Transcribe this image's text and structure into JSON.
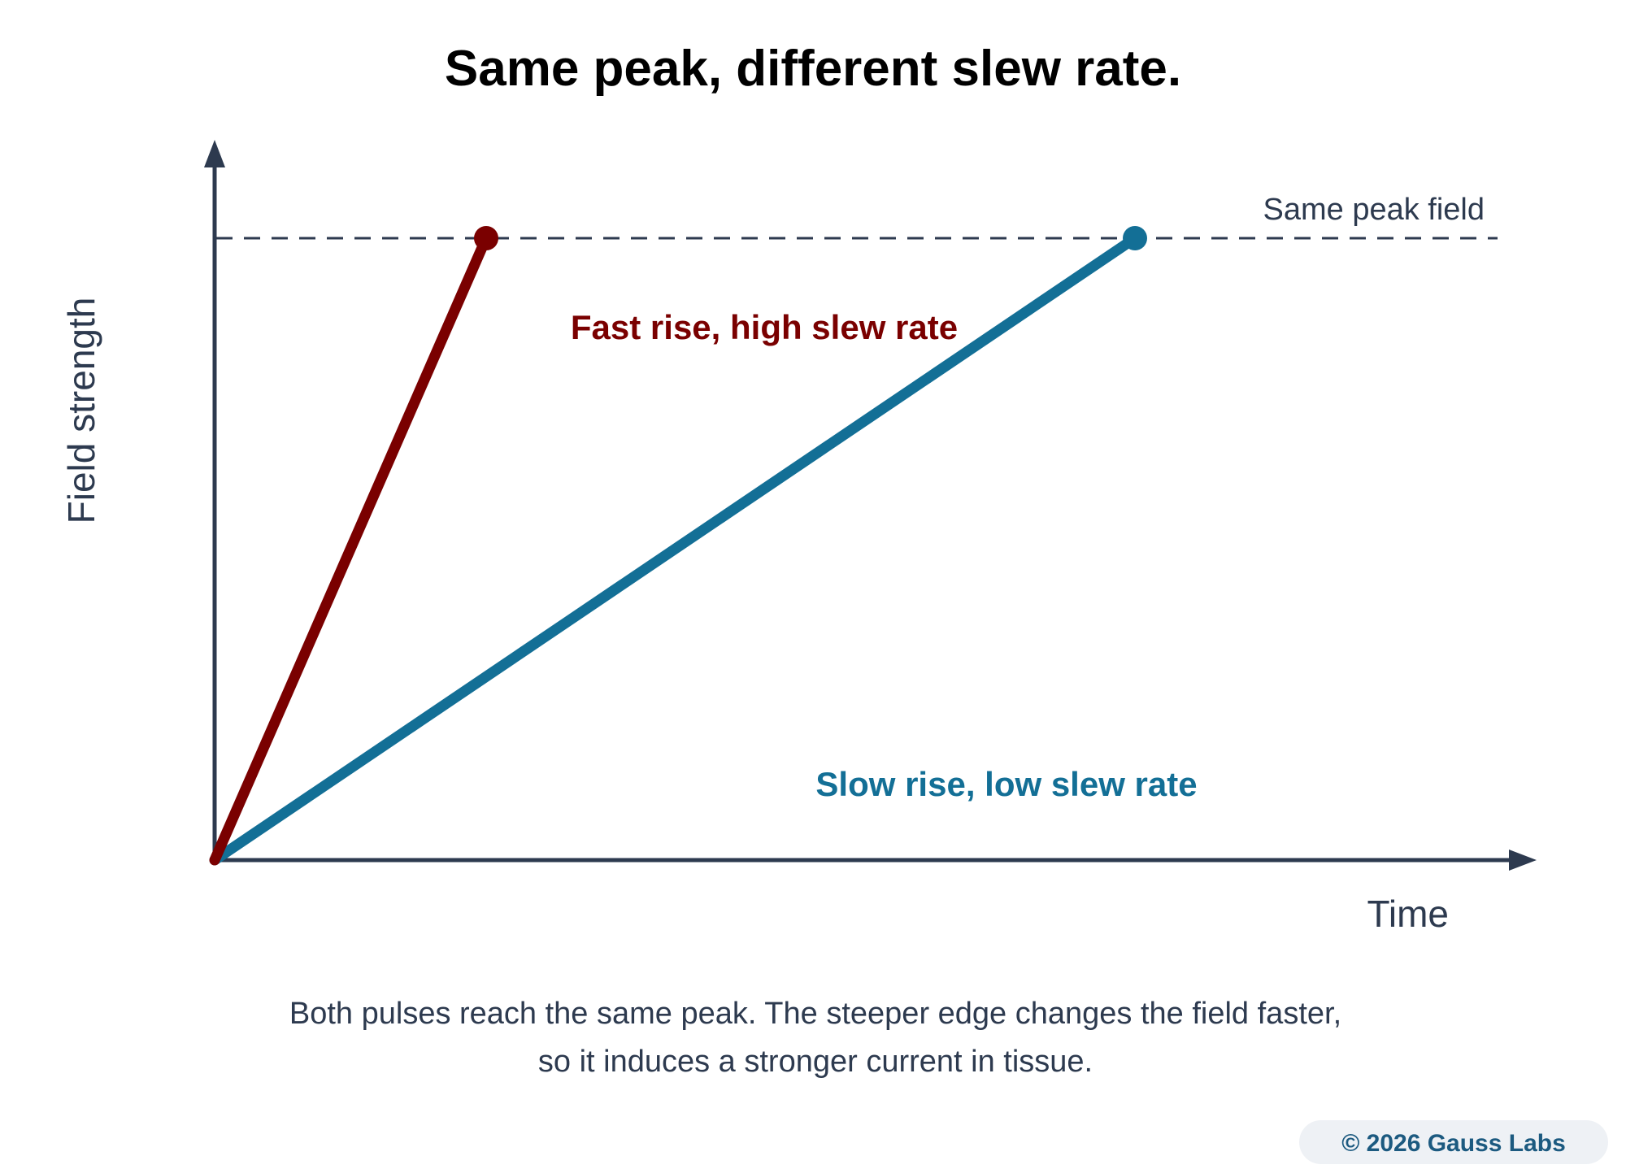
{
  "title": "Same peak, different slew rate.",
  "axes": {
    "x_label": "Time",
    "y_label": "Field strength"
  },
  "peak_line": {
    "label": "Same peak field"
  },
  "series": [
    {
      "id": "fast",
      "label": "Fast rise, high slew rate",
      "color": "#7a0000",
      "start": [
        0,
        0
      ],
      "end": [
        1,
        1
      ]
    },
    {
      "id": "slow",
      "label": "Slow rise, low slew rate",
      "color": "#136f96",
      "start": [
        0,
        0
      ],
      "end": [
        3.4,
        1
      ]
    }
  ],
  "caption": {
    "line1": "Both pulses reach the same peak. The steeper edge changes the field faster,",
    "line2": "so it induces a stronger current in tissue."
  },
  "badge": {
    "text": "© 2026 Gauss Labs",
    "text_color": "#1c5a80",
    "background": "#eef1f5"
  },
  "colors": {
    "axis": "#2d3a4f",
    "fast": "#7a0000",
    "slow": "#136f96"
  }
}
